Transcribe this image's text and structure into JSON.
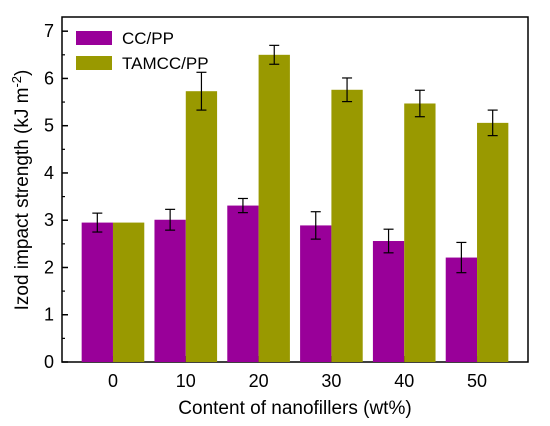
{
  "chart_data": {
    "type": "bar",
    "xlabel": "Content of nanofillers (wt%)",
    "ylabel_main": "Izod impact strength (kJ m",
    "ylabel_sup": "-2",
    "ylabel_close": ")",
    "ylim": [
      0,
      7.3
    ],
    "yticks": [
      0,
      1,
      2,
      3,
      4,
      5,
      6,
      7
    ],
    "categories": [
      "0",
      "10",
      "20",
      "30",
      "40",
      "50"
    ],
    "legend_position": "top-left",
    "grid": false,
    "series": [
      {
        "name": "CC/PP",
        "color": "#990099",
        "values": [
          2.95,
          3.01,
          3.31,
          2.89,
          2.56,
          2.21
        ],
        "errors": [
          0.2,
          0.22,
          0.15,
          0.29,
          0.25,
          0.32
        ]
      },
      {
        "name": "TAMCC/PP",
        "color": "#999900",
        "values": [
          2.95,
          5.73,
          6.5,
          5.76,
          5.47,
          5.06
        ],
        "errors": [
          0.0,
          0.4,
          0.2,
          0.25,
          0.28,
          0.27
        ]
      }
    ]
  }
}
